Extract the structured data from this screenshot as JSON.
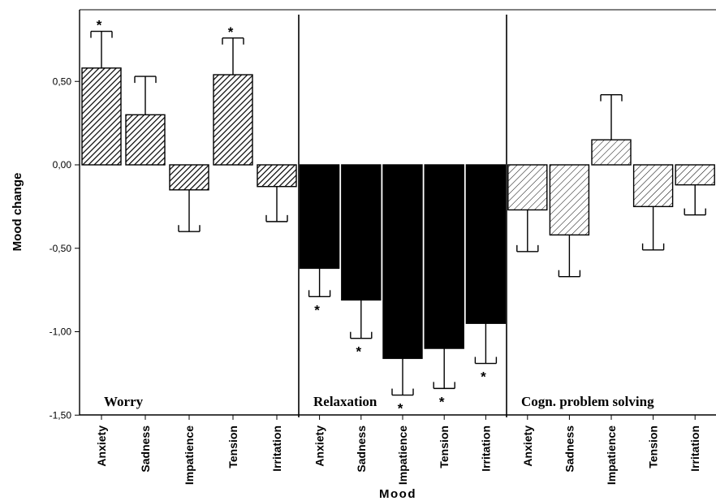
{
  "chart_data": {
    "type": "bar",
    "xlabel": "Mood",
    "ylabel": "Mood change",
    "ylim": [
      -1.5,
      0.9
    ],
    "yticks": [
      0.5,
      0.0,
      -0.5,
      -1.0,
      -1.5
    ],
    "ytick_labels": [
      "0,50",
      "0,00",
      "-0,50",
      "-1,00",
      "-1,50"
    ],
    "categories": [
      "Anxiety",
      "Sadness",
      "Impatience",
      "Tension",
      "Irritation"
    ],
    "groups": [
      {
        "name": "Worry",
        "fill": "hatch-dense",
        "values": [
          0.58,
          0.3,
          -0.15,
          0.54,
          -0.13
        ],
        "error": [
          0.22,
          0.23,
          0.25,
          0.22,
          0.21
        ],
        "significant": [
          true,
          false,
          false,
          true,
          false
        ]
      },
      {
        "name": "Relaxation",
        "fill": "solid",
        "values": [
          -0.62,
          -0.81,
          -1.16,
          -1.1,
          -0.95
        ],
        "error": [
          0.17,
          0.23,
          0.22,
          0.24,
          0.24
        ],
        "significant": [
          true,
          true,
          true,
          true,
          true
        ]
      },
      {
        "name": "Cogn. problem solving",
        "fill": "hatch-light",
        "values": [
          -0.27,
          -0.42,
          0.15,
          -0.25,
          -0.12
        ],
        "error": [
          0.25,
          0.25,
          0.27,
          0.26,
          0.18
        ],
        "significant": [
          false,
          false,
          false,
          false,
          false
        ]
      }
    ],
    "significance_marker": "*",
    "grid": false,
    "colors": {
      "bar_solid": "#000000",
      "hatch": "#000000",
      "axis": "#000000"
    }
  }
}
